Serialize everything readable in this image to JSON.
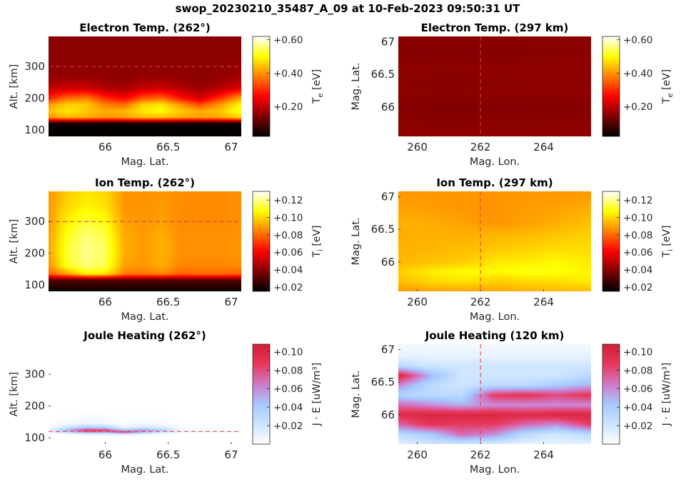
{
  "suptitle": "swop_20230210_35487_A_09 at 10-Feb-2023 09:50:31 UT",
  "colormaps": {
    "hot": [
      "#000000",
      "#800000",
      "#ff0000",
      "#ff8000",
      "#ffff00",
      "#ffffff"
    ],
    "joule": [
      "#ffffff",
      "#cce4ff",
      "#a6c8ff",
      "#d07ac8",
      "#e8385c",
      "#d21f36"
    ]
  },
  "chart_data": [
    {
      "type": "heatmap",
      "title": "Electron Temp. (262°)",
      "xlabel": "Mag. Lat.",
      "ylabel": "Alt. [km]",
      "xlim": [
        65.55,
        67.08
      ],
      "ylim": [
        80,
        395
      ],
      "xticks": [
        66,
        66.5,
        67
      ],
      "xticklabels": [
        "66",
        "66.5",
        "67"
      ],
      "yticks": [
        100,
        200,
        300
      ],
      "yticklabels": [
        "100",
        "200",
        "300"
      ],
      "ref_line": {
        "orientation": "horizontal",
        "value": 300
      },
      "colormap": "hot",
      "clim": [
        0.02,
        0.62
      ],
      "colorbar": {
        "label": "T",
        "sub": "e",
        "unit": " [eV]",
        "ticks": [
          0.2,
          0.4,
          0.6
        ],
        "ticklabels": [
          "+0.20",
          "+0.40",
          "+0.60"
        ]
      },
      "x": [
        65.55,
        65.7,
        65.85,
        66.0,
        66.15,
        66.3,
        66.45,
        66.6,
        66.75,
        66.9,
        67.08
      ],
      "y": [
        80,
        120,
        140,
        160,
        180,
        200,
        230,
        260,
        300,
        350,
        395
      ],
      "z": [
        [
          0.02,
          0.02,
          0.02,
          0.02,
          0.02,
          0.02,
          0.02,
          0.02,
          0.02,
          0.02,
          0.02
        ],
        [
          0.03,
          0.03,
          0.03,
          0.03,
          0.03,
          0.03,
          0.03,
          0.03,
          0.03,
          0.03,
          0.03
        ],
        [
          0.4,
          0.43,
          0.42,
          0.4,
          0.41,
          0.44,
          0.44,
          0.42,
          0.41,
          0.42,
          0.46
        ],
        [
          0.44,
          0.48,
          0.45,
          0.42,
          0.43,
          0.48,
          0.5,
          0.45,
          0.42,
          0.44,
          0.52
        ],
        [
          0.4,
          0.46,
          0.45,
          0.38,
          0.36,
          0.46,
          0.48,
          0.4,
          0.33,
          0.4,
          0.5
        ],
        [
          0.3,
          0.36,
          0.38,
          0.3,
          0.26,
          0.34,
          0.36,
          0.28,
          0.22,
          0.3,
          0.42
        ],
        [
          0.2,
          0.22,
          0.22,
          0.19,
          0.18,
          0.21,
          0.22,
          0.19,
          0.17,
          0.19,
          0.24
        ],
        [
          0.16,
          0.17,
          0.17,
          0.16,
          0.15,
          0.17,
          0.17,
          0.16,
          0.15,
          0.16,
          0.18
        ],
        [
          0.15,
          0.15,
          0.15,
          0.15,
          0.15,
          0.15,
          0.15,
          0.15,
          0.15,
          0.15,
          0.16
        ],
        [
          0.15,
          0.15,
          0.15,
          0.15,
          0.15,
          0.15,
          0.15,
          0.15,
          0.15,
          0.15,
          0.15
        ],
        [
          0.15,
          0.15,
          0.15,
          0.15,
          0.15,
          0.15,
          0.15,
          0.15,
          0.15,
          0.15,
          0.15
        ]
      ]
    },
    {
      "type": "heatmap",
      "title": "Electron Temp. (297 km)",
      "xlabel": "Mag. Lon.",
      "ylabel": "Mag. Lat.",
      "xlim": [
        259.4,
        265.5
      ],
      "ylim": [
        65.55,
        67.08
      ],
      "xticks": [
        260,
        262,
        264
      ],
      "xticklabels": [
        "260",
        "262",
        "264"
      ],
      "yticks": [
        66,
        66.5,
        67
      ],
      "yticklabels": [
        "66",
        "66.5",
        "67"
      ],
      "ref_line": {
        "orientation": "vertical",
        "value": 262
      },
      "colormap": "hot",
      "clim": [
        0.02,
        0.62
      ],
      "colorbar": {
        "label": "T",
        "sub": "e",
        "unit": " [eV]",
        "ticks": [
          0.2,
          0.4,
          0.6
        ],
        "ticklabels": [
          "+0.20",
          "+0.40",
          "+0.60"
        ]
      },
      "x": [
        259.4,
        261.0,
        262.5,
        264.0,
        265.5
      ],
      "y": [
        65.55,
        65.8,
        66.0,
        66.2,
        66.4,
        66.6,
        66.85,
        67.08
      ],
      "z": [
        [
          0.155,
          0.155,
          0.155,
          0.155,
          0.155
        ],
        [
          0.15,
          0.148,
          0.15,
          0.15,
          0.152
        ],
        [
          0.145,
          0.14,
          0.143,
          0.145,
          0.147
        ],
        [
          0.152,
          0.15,
          0.152,
          0.153,
          0.154
        ],
        [
          0.15,
          0.148,
          0.15,
          0.151,
          0.152
        ],
        [
          0.155,
          0.152,
          0.154,
          0.155,
          0.156
        ],
        [
          0.145,
          0.142,
          0.145,
          0.147,
          0.15
        ],
        [
          0.155,
          0.152,
          0.155,
          0.155,
          0.155
        ]
      ]
    },
    {
      "type": "heatmap",
      "title": "Ion Temp. (262°)",
      "xlabel": "Mag. Lat.",
      "ylabel": "Alt. [km]",
      "xlim": [
        65.55,
        67.08
      ],
      "ylim": [
        80,
        395
      ],
      "xticks": [
        66,
        66.5,
        67
      ],
      "xticklabels": [
        "66",
        "66.5",
        "67"
      ],
      "yticks": [
        100,
        200,
        300
      ],
      "yticklabels": [
        "100",
        "200",
        "300"
      ],
      "ref_line": {
        "orientation": "horizontal",
        "value": 300
      },
      "colormap": "hot",
      "clim": [
        0.015,
        0.13
      ],
      "colorbar": {
        "label": "T",
        "sub": "i",
        "unit": " [eV]",
        "ticks": [
          0.02,
          0.04,
          0.06,
          0.08,
          0.1,
          0.12
        ],
        "ticklabels": [
          "+0.02",
          "+0.04",
          "+0.06",
          "+0.08",
          "+0.10",
          "+0.12"
        ]
      },
      "x": [
        65.55,
        65.7,
        65.85,
        66.0,
        66.15,
        66.3,
        66.45,
        66.6,
        66.75,
        66.9,
        67.08
      ],
      "y": [
        80,
        115,
        135,
        160,
        200,
        250,
        300,
        350,
        395
      ],
      "z": [
        [
          0.016,
          0.016,
          0.016,
          0.016,
          0.016,
          0.016,
          0.016,
          0.016,
          0.016,
          0.016,
          0.016
        ],
        [
          0.03,
          0.03,
          0.03,
          0.03,
          0.03,
          0.03,
          0.03,
          0.03,
          0.03,
          0.03,
          0.03
        ],
        [
          0.078,
          0.09,
          0.105,
          0.103,
          0.084,
          0.082,
          0.085,
          0.079,
          0.08,
          0.08,
          0.078
        ],
        [
          0.087,
          0.11,
          0.118,
          0.114,
          0.09,
          0.088,
          0.092,
          0.085,
          0.085,
          0.085,
          0.086
        ],
        [
          0.09,
          0.112,
          0.12,
          0.116,
          0.092,
          0.089,
          0.093,
          0.087,
          0.087,
          0.087,
          0.088
        ],
        [
          0.09,
          0.11,
          0.118,
          0.114,
          0.092,
          0.089,
          0.093,
          0.087,
          0.087,
          0.087,
          0.088
        ],
        [
          0.089,
          0.105,
          0.112,
          0.108,
          0.09,
          0.088,
          0.09,
          0.086,
          0.086,
          0.086,
          0.087
        ],
        [
          0.088,
          0.1,
          0.105,
          0.102,
          0.088,
          0.087,
          0.089,
          0.086,
          0.086,
          0.086,
          0.087
        ],
        [
          0.088,
          0.098,
          0.102,
          0.1,
          0.088,
          0.087,
          0.088,
          0.086,
          0.086,
          0.086,
          0.087
        ]
      ]
    },
    {
      "type": "heatmap",
      "title": "Ion Temp. (297 km)",
      "xlabel": "Mag. Lon.",
      "ylabel": "Mag. Lat.",
      "xlim": [
        259.4,
        265.5
      ],
      "ylim": [
        65.55,
        67.08
      ],
      "xticks": [
        260,
        262,
        264
      ],
      "xticklabels": [
        "260",
        "262",
        "264"
      ],
      "yticks": [
        66,
        66.5,
        67
      ],
      "yticklabels": [
        "66",
        "66.5",
        "67"
      ],
      "ref_line": {
        "orientation": "vertical",
        "value": 262
      },
      "colormap": "hot",
      "clim": [
        0.015,
        0.13
      ],
      "colorbar": {
        "label": "T",
        "sub": "i",
        "unit": " [eV]",
        "ticks": [
          0.02,
          0.04,
          0.06,
          0.08,
          0.1,
          0.12
        ],
        "ticklabels": [
          "+0.02",
          "+0.04",
          "+0.06",
          "+0.08",
          "+0.10",
          "+0.12"
        ]
      },
      "x": [
        259.4,
        260.5,
        261.5,
        262.5,
        263.5,
        264.5,
        265.5
      ],
      "y": [
        65.55,
        65.7,
        65.85,
        66.0,
        66.2,
        66.4,
        66.6,
        66.85,
        67.08
      ],
      "z": [
        [
          0.088,
          0.09,
          0.09,
          0.091,
          0.093,
          0.094,
          0.095
        ],
        [
          0.095,
          0.1,
          0.102,
          0.098,
          0.1,
          0.101,
          0.104
        ],
        [
          0.098,
          0.104,
          0.107,
          0.106,
          0.109,
          0.108,
          0.105
        ],
        [
          0.094,
          0.096,
          0.098,
          0.103,
          0.104,
          0.106,
          0.103
        ],
        [
          0.093,
          0.094,
          0.095,
          0.097,
          0.099,
          0.101,
          0.101
        ],
        [
          0.092,
          0.093,
          0.093,
          0.094,
          0.095,
          0.097,
          0.099
        ],
        [
          0.093,
          0.092,
          0.09,
          0.088,
          0.09,
          0.093,
          0.096
        ],
        [
          0.09,
          0.089,
          0.088,
          0.088,
          0.089,
          0.09,
          0.092
        ],
        [
          0.088,
          0.088,
          0.088,
          0.088,
          0.088,
          0.088,
          0.088
        ]
      ]
    },
    {
      "type": "heatmap",
      "title": "Joule Heating (262°)",
      "xlabel": "Mag. Lat.",
      "ylabel": "Alt. [km]",
      "xlim": [
        65.55,
        67.08
      ],
      "ylim": [
        80,
        395
      ],
      "xticks": [
        66,
        66.5,
        67
      ],
      "xticklabels": [
        "66",
        "66.5",
        "67"
      ],
      "yticks": [
        100,
        200,
        300
      ],
      "yticklabels": [
        "100",
        "200",
        "300"
      ],
      "ref_line": {
        "orientation": "horizontal",
        "value": 120
      },
      "colormap": "joule",
      "clim": [
        0.0,
        0.108
      ],
      "colorbar": {
        "label": "J · E",
        "sub": "",
        "unit": " [uW/m³]",
        "ticks": [
          0.02,
          0.04,
          0.06,
          0.08,
          0.1
        ],
        "ticklabels": [
          "+0.02",
          "+0.04",
          "+0.06",
          "+0.08",
          "+0.10"
        ]
      },
      "x": [
        65.55,
        65.7,
        65.85,
        66.0,
        66.15,
        66.3,
        66.45,
        66.6,
        66.75,
        66.9,
        67.08
      ],
      "y": [
        80,
        105,
        112,
        118,
        124,
        132,
        145,
        180,
        395
      ],
      "z": [
        [
          0,
          0,
          0,
          0,
          0,
          0,
          0,
          0,
          0,
          0,
          0
        ],
        [
          0,
          0,
          0,
          0,
          0,
          0,
          0,
          0,
          0,
          0,
          0
        ],
        [
          0.0,
          0.004,
          0.01,
          0.012,
          0.02,
          0.01,
          0.004,
          0.0,
          0.0,
          0.0,
          0.0
        ],
        [
          0.004,
          0.03,
          0.06,
          0.06,
          0.09,
          0.05,
          0.02,
          0.004,
          0.002,
          0.002,
          0.002
        ],
        [
          0.008,
          0.05,
          0.09,
          0.085,
          0.04,
          0.06,
          0.04,
          0.006,
          0.003,
          0.003,
          0.003
        ],
        [
          0.004,
          0.02,
          0.04,
          0.035,
          0.01,
          0.02,
          0.015,
          0.003,
          0.001,
          0.001,
          0.001
        ],
        [
          0,
          0.004,
          0.008,
          0.006,
          0.002,
          0.004,
          0.003,
          0,
          0,
          0,
          0
        ],
        [
          0,
          0,
          0,
          0,
          0,
          0,
          0,
          0,
          0,
          0,
          0
        ],
        [
          0,
          0,
          0,
          0,
          0,
          0,
          0,
          0,
          0,
          0,
          0
        ]
      ]
    },
    {
      "type": "heatmap",
      "title": "Joule Heating (120 km)",
      "xlabel": "Mag. Lon.",
      "ylabel": "Mag. Lat.",
      "xlim": [
        259.4,
        265.5
      ],
      "ylim": [
        65.55,
        67.08
      ],
      "xticks": [
        260,
        262,
        264
      ],
      "xticklabels": [
        "260",
        "262",
        "264"
      ],
      "yticks": [
        66,
        66.5,
        67
      ],
      "yticklabels": [
        "66",
        "66.5",
        "67"
      ],
      "ref_line": {
        "orientation": "vertical",
        "value": 262
      },
      "colormap": "joule",
      "clim": [
        0.0,
        0.108
      ],
      "colorbar": {
        "label": "J · E",
        "sub": "",
        "unit": " [uW/m³]",
        "ticks": [
          0.02,
          0.04,
          0.06,
          0.08,
          0.1
        ],
        "ticklabels": [
          "+0.02",
          "+0.04",
          "+0.06",
          "+0.08",
          "+0.10"
        ]
      },
      "x": [
        259.4,
        260.4,
        261.4,
        262.4,
        263.4,
        264.4,
        265.5
      ],
      "y": [
        65.55,
        65.7,
        65.85,
        66.0,
        66.15,
        66.3,
        66.45,
        66.6,
        66.75,
        66.9,
        67.08
      ],
      "z": [
        [
          0.01,
          0.02,
          0.02,
          0.015,
          0.01,
          0.01,
          0.01
        ],
        [
          0.03,
          0.04,
          0.07,
          0.06,
          0.03,
          0.02,
          0.03
        ],
        [
          0.07,
          0.09,
          0.085,
          0.085,
          0.07,
          0.06,
          0.085
        ],
        [
          0.095,
          0.1,
          0.1,
          0.1,
          0.095,
          0.1,
          0.1
        ],
        [
          0.07,
          0.06,
          0.05,
          0.06,
          0.06,
          0.06,
          0.06
        ],
        [
          0.035,
          0.03,
          0.03,
          0.085,
          0.09,
          0.08,
          0.09
        ],
        [
          0.06,
          0.03,
          0.02,
          0.03,
          0.03,
          0.04,
          0.05
        ],
        [
          0.1,
          0.05,
          0.02,
          0.02,
          0.02,
          0.02,
          0.03
        ],
        [
          0.03,
          0.02,
          0.02,
          0.02,
          0.02,
          0.02,
          0.02
        ],
        [
          0.01,
          0.01,
          0.01,
          0.01,
          0.01,
          0.01,
          0.01
        ],
        [
          0.005,
          0.005,
          0.005,
          0.005,
          0.005,
          0.005,
          0.005
        ]
      ]
    }
  ]
}
